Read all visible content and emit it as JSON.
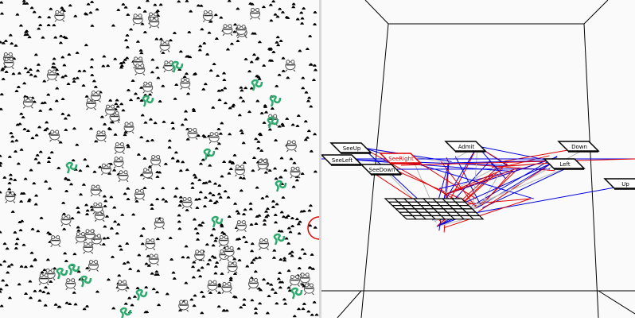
{
  "world": {
    "background": "#fafafa",
    "entities": {
      "food": {
        "icon": "black-dot-icon",
        "color": "#000000"
      },
      "frog": {
        "icon": "frog-icon",
        "color": "#555555"
      },
      "snake": {
        "icon": "snake-icon",
        "color": "#2eaa6e"
      },
      "agent": {
        "icon": "red-circle-agent-icon",
        "color": "#e00000"
      }
    }
  },
  "graph": {
    "nodes": [
      {
        "id": "SeeUp",
        "label": "SeeUp",
        "color": "#000000"
      },
      {
        "id": "SeeLeft",
        "label": "SeeLeft",
        "color": "#000000"
      },
      {
        "id": "SeeRight",
        "label": "SeeRight",
        "color": "#e00000"
      },
      {
        "id": "SeeDown",
        "label": "SeeDown",
        "color": "#000000"
      },
      {
        "id": "Admit",
        "label": "Admit",
        "color": "#000000"
      },
      {
        "id": "Down",
        "label": "Down",
        "color": "#000000"
      },
      {
        "id": "Left",
        "label": "Left",
        "color": "#000000"
      },
      {
        "id": "Up",
        "label": "Up",
        "color": "#000000"
      }
    ],
    "edge_colors": {
      "excitatory": "#e00000",
      "inhibitory": "#0000e0",
      "neutral": "#b8b8b8"
    }
  }
}
